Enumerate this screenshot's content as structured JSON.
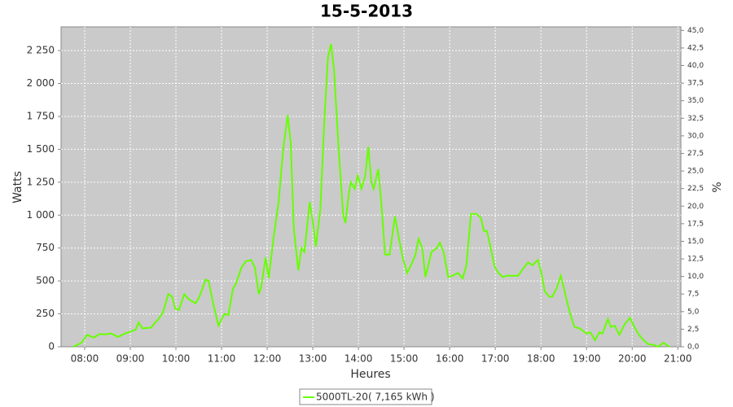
{
  "chart_data": {
    "type": "line",
    "title": "15-5-2013",
    "x_label": "Heures",
    "y_label": "Watts",
    "y2_label": "%",
    "x": [
      "07:45",
      "07:56",
      "08:03",
      "08:12",
      "08:19",
      "08:28",
      "08:35",
      "08:44",
      "08:51",
      "09:00",
      "09:07",
      "09:11",
      "09:16",
      "09:27",
      "09:37",
      "09:43",
      "09:50",
      "09:55",
      "09:59",
      "10:04",
      "10:11",
      "10:17",
      "10:26",
      "10:31",
      "10:39",
      "10:43",
      "10:49",
      "10:56",
      "11:00",
      "11:04",
      "11:09",
      "11:15",
      "11:19",
      "11:26",
      "11:32",
      "11:39",
      "11:44",
      "11:49",
      "11:52",
      "11:58",
      "12:02",
      "12:09",
      "12:15",
      "12:21",
      "12:27",
      "12:31",
      "12:35",
      "12:41",
      "12:45",
      "12:49",
      "12:56",
      "13:00",
      "13:04",
      "13:10",
      "13:15",
      "13:20",
      "13:24",
      "13:28",
      "13:34",
      "13:40",
      "13:43",
      "13:47",
      "13:50",
      "13:55",
      "13:59",
      "14:04",
      "14:09",
      "14:13",
      "14:17",
      "14:20",
      "14:26",
      "14:30",
      "14:35",
      "14:41",
      "14:48",
      "14:54",
      "14:59",
      "15:04",
      "15:10",
      "15:15",
      "15:19",
      "15:24",
      "15:28",
      "15:32",
      "15:36",
      "15:43",
      "15:47",
      "15:52",
      "15:58",
      "16:04",
      "16:11",
      "16:17",
      "16:22",
      "16:28",
      "16:35",
      "16:41",
      "16:45",
      "16:49",
      "16:54",
      "16:59",
      "17:04",
      "17:10",
      "17:15",
      "17:24",
      "17:30",
      "17:36",
      "17:43",
      "17:49",
      "17:56",
      "18:01",
      "18:05",
      "18:11",
      "18:15",
      "18:21",
      "18:26",
      "18:30",
      "18:34",
      "18:39",
      "18:44",
      "18:51",
      "19:00",
      "19:05",
      "19:11",
      "19:17",
      "19:21",
      "19:28",
      "19:32",
      "19:37",
      "19:43",
      "19:50",
      "19:57",
      "20:02",
      "20:09",
      "20:15",
      "20:21",
      "20:28",
      "20:34",
      "20:41",
      "20:49"
    ],
    "series": [
      {
        "name": "5000TL-20( 7,165 kWh )",
        "color": "#66ff00",
        "values": [
          0,
          30,
          90,
          70,
          95,
          95,
          100,
          75,
          95,
          115,
          130,
          185,
          140,
          145,
          210,
          260,
          400,
          380,
          290,
          280,
          400,
          360,
          330,
          380,
          510,
          500,
          330,
          160,
          210,
          250,
          240,
          440,
          480,
          600,
          650,
          660,
          600,
          400,
          450,
          680,
          520,
          850,
          1100,
          1500,
          1760,
          1550,
          900,
          580,
          750,
          720,
          1100,
          950,
          760,
          1050,
          1700,
          2200,
          2300,
          2100,
          1500,
          1000,
          940,
          1150,
          1250,
          1200,
          1300,
          1200,
          1300,
          1520,
          1250,
          1200,
          1350,
          1100,
          700,
          700,
          990,
          800,
          660,
          560,
          630,
          700,
          820,
          750,
          530,
          620,
          720,
          750,
          790,
          720,
          530,
          540,
          560,
          520,
          620,
          1010,
          1010,
          980,
          880,
          880,
          750,
          610,
          560,
          530,
          540,
          540,
          540,
          590,
          640,
          620,
          660,
          550,
          420,
          380,
          380,
          450,
          540,
          450,
          350,
          240,
          150,
          140,
          100,
          110,
          50,
          110,
          100,
          210,
          150,
          160,
          90,
          170,
          220,
          160,
          90,
          50,
          20,
          15,
          0,
          30,
          0
        ]
      }
    ],
    "xlim": [
      "07:29",
      "21:04"
    ],
    "xticks": [
      "08:00",
      "09:00",
      "10:00",
      "11:00",
      "12:00",
      "13:00",
      "14:00",
      "15:00",
      "16:00",
      "17:00",
      "18:00",
      "19:00",
      "20:00",
      "21:00"
    ],
    "ylim": [
      0,
      2430
    ],
    "yticks": [
      0,
      250,
      500,
      750,
      {
        "value": 1000,
        "label": "1 000"
      },
      {
        "value": 1250,
        "label": "1 250"
      },
      {
        "value": 1500,
        "label": "1 500"
      },
      {
        "value": 1750,
        "label": "1 750"
      },
      {
        "value": 2000,
        "label": "2 000"
      },
      {
        "value": 2250,
        "label": "2 250"
      }
    ],
    "y2lim": [
      0,
      45.5
    ],
    "y2ticks": [
      {
        "value": 0,
        "label": "0,0"
      },
      {
        "value": 2.5,
        "label": "2,5"
      },
      {
        "value": 5,
        "label": "5,0"
      },
      {
        "value": 7.5,
        "label": "7,5"
      },
      {
        "value": 10,
        "label": "10,0"
      },
      {
        "value": 12.5,
        "label": "12,5"
      },
      {
        "value": 15,
        "label": "15,0"
      },
      {
        "value": 17.5,
        "label": "17,5"
      },
      {
        "value": 20,
        "label": "20,0"
      },
      {
        "value": 22.5,
        "label": "22,5"
      },
      {
        "value": 25,
        "label": "25,0"
      },
      {
        "value": 27.5,
        "label": "27,5"
      },
      {
        "value": 30,
        "label": "30,0"
      },
      {
        "value": 32.5,
        "label": "32,5"
      },
      {
        "value": 35,
        "label": "35,0"
      },
      {
        "value": 37.5,
        "label": "37,5"
      },
      {
        "value": 40,
        "label": "40,0"
      },
      {
        "value": 42.5,
        "label": "42,5"
      },
      {
        "value": 45,
        "label": "45,0"
      }
    ],
    "grid": true,
    "legend": "bottom"
  }
}
